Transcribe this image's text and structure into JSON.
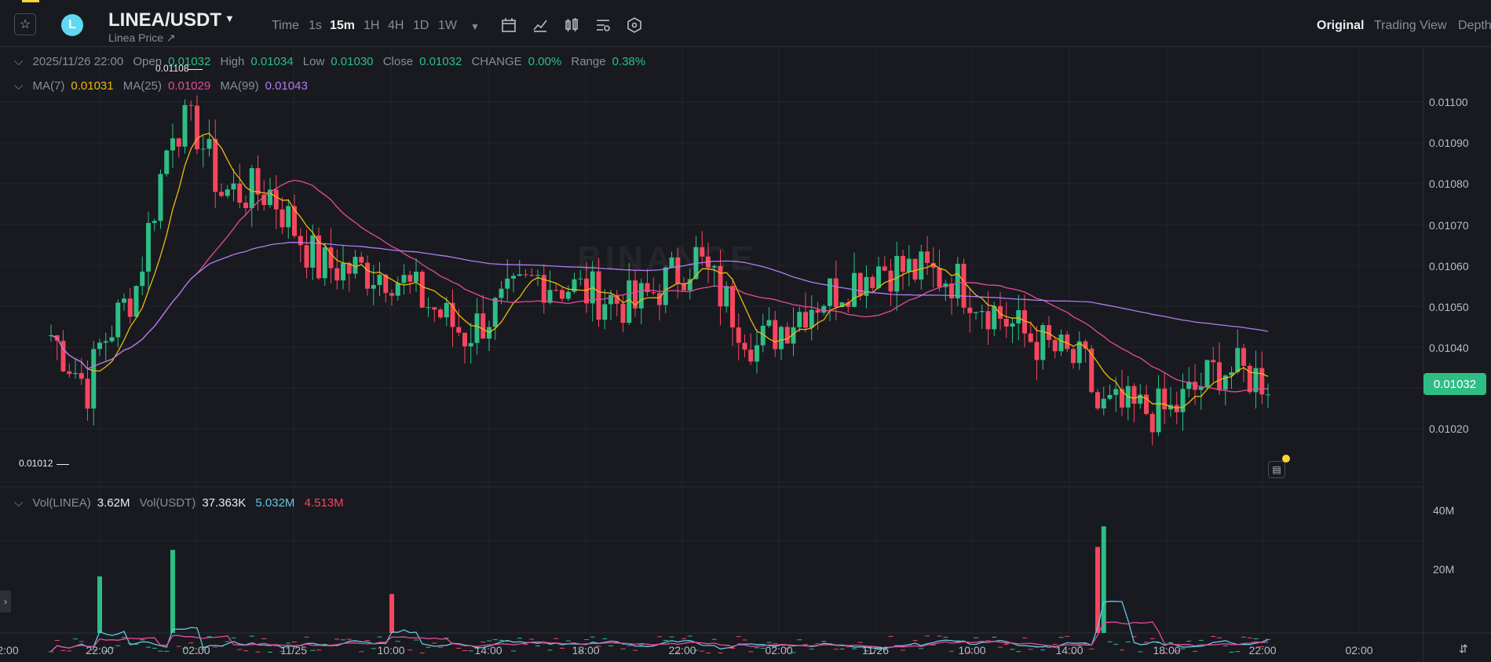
{
  "header": {
    "pair": "LINEA/USDT",
    "subtitle": "Linea Price ↗",
    "coin_icon": "linea-logo",
    "timeframes": [
      "Time",
      "1s",
      "15m",
      "1H",
      "4H",
      "1D",
      "1W"
    ],
    "active_timeframe": "15m",
    "views": [
      "Original",
      "Trading View",
      "Depth"
    ],
    "active_view": "Original"
  },
  "ohlc": {
    "datetime": "2025/11/26 22:00",
    "open_label": "Open",
    "open": "0.01032",
    "high_label": "High",
    "high": "0.01034",
    "low_label": "Low",
    "low": "0.01030",
    "close_label": "Close",
    "close": "0.01032",
    "change_label": "CHANGE",
    "change": "0.00%",
    "range_label": "Range",
    "range": "0.38%"
  },
  "ma": {
    "ma7_label": "MA(7)",
    "ma7": "0.01031",
    "ma25_label": "MA(25)",
    "ma25": "0.01029",
    "ma99_label": "MA(99)",
    "ma99": "0.01043"
  },
  "volume_legend": {
    "vol_linea_label": "Vol(LINEA)",
    "vol_linea": "3.62M",
    "vol_usdt_label": "Vol(USDT)",
    "vol_usdt": "37.363K",
    "ma_a": "5.032M",
    "ma_b": "4.513M"
  },
  "price_axis": [
    "0.01100",
    "0.01090",
    "0.01080",
    "0.01070",
    "0.01060",
    "0.01050",
    "0.01040",
    "0.01020"
  ],
  "last_price": "0.01032",
  "extremes": {
    "high": "0.01108",
    "low": "0.01012"
  },
  "volume_axis": [
    "40M",
    "20M"
  ],
  "time_axis": [
    "22:00",
    "02:00",
    "11/25",
    "10:00",
    "14:00",
    "18:00",
    "22:00",
    "02:00",
    "11/26",
    "10:00",
    "14:00",
    "18:00",
    "22:00",
    "02:00"
  ],
  "partial_time_label": "2:00",
  "watermark": "BINANCE",
  "colors": {
    "up": "#2ebd85",
    "down": "#f6465d",
    "ma7": "#f0b90b",
    "ma25": "#e84b9a",
    "ma99": "#b27cf0",
    "vol_ma_a": "#63c7e6",
    "vol_ma_b": "#e84b9a"
  },
  "chart_data": {
    "type": "candlestick",
    "interval": "15m",
    "y_range": [
      0.0101,
      0.01112
    ],
    "close_path_keypoints": [
      [
        "11/24 20:00",
        0.01043
      ],
      [
        "11/24 21:30",
        0.0103
      ],
      [
        "11/24 22:00",
        0.0104
      ],
      [
        "11/24 23:30",
        0.01055
      ],
      [
        "11/25 01:00",
        0.01095
      ],
      [
        "11/25 02:00",
        0.01093
      ],
      [
        "11/25 03:00",
        0.01078
      ],
      [
        "11/25 05:00",
        0.01078
      ],
      [
        "11/25 07:00",
        0.0106
      ],
      [
        "11/25 10:00",
        0.01058
      ],
      [
        "11/25 13:00",
        0.01043
      ],
      [
        "11/25 16:00",
        0.01057
      ],
      [
        "11/25 20:00",
        0.0105
      ],
      [
        "11/25 22:30",
        0.01062
      ],
      [
        "11/26 01:00",
        0.0104
      ],
      [
        "11/26 03:00",
        0.0105
      ],
      [
        "11/26 06:00",
        0.0106
      ],
      [
        "11/26 09:00",
        0.01057
      ],
      [
        "11/26 12:00",
        0.01043
      ],
      [
        "11/26 14:30",
        0.01035
      ],
      [
        "11/26 15:00",
        0.01025
      ],
      [
        "11/26 18:00",
        0.01024
      ],
      [
        "11/26 20:00",
        0.01035
      ],
      [
        "11/26 22:00",
        0.01032
      ]
    ],
    "volume_spikes_M": [
      [
        "11/24 22:00",
        28
      ],
      [
        "11/25 01:00",
        37
      ],
      [
        "11/25 10:00",
        22
      ],
      [
        "11/26 15:00",
        38
      ],
      [
        "11/26 15:15",
        45
      ]
    ]
  }
}
